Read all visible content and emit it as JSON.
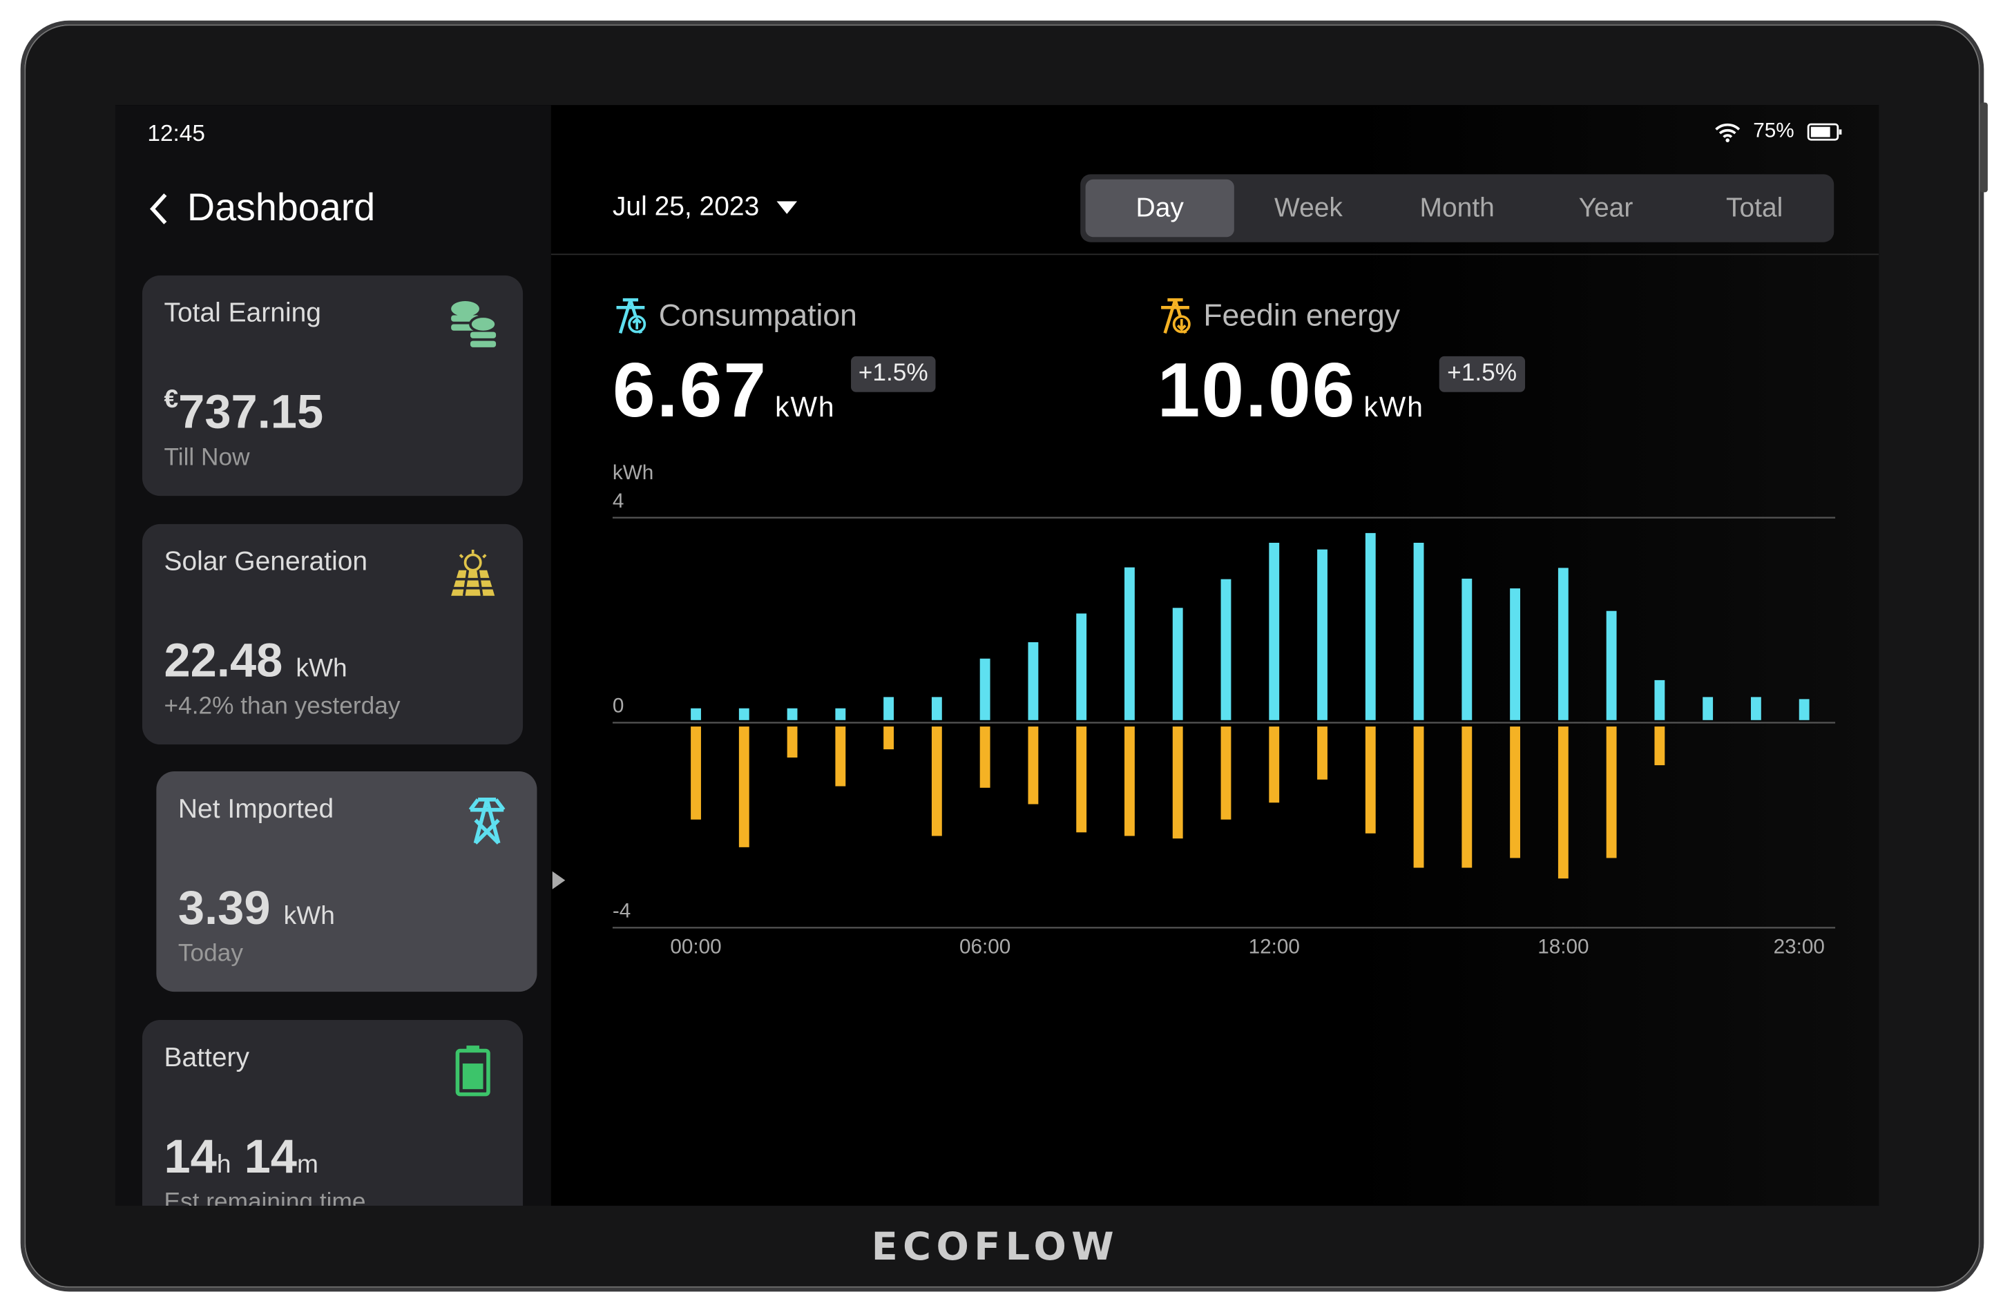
{
  "status": {
    "time": "12:45",
    "battery": "75%"
  },
  "sidebar": {
    "title": "Dashboard",
    "cards": [
      {
        "title": "Total Earning",
        "currency": "€",
        "value": "737.15",
        "unit": "",
        "sub": "Till Now",
        "icon": "coins-icon"
      },
      {
        "title": "Solar Generation",
        "value": "22.48",
        "unit": "kWh",
        "sub": "+4.2% than yesterday",
        "icon": "solar-panel-icon"
      },
      {
        "title": "Net Imported",
        "value": "3.39",
        "unit": "kWh",
        "sub": "Today",
        "icon": "power-tower-icon"
      },
      {
        "title": "Battery",
        "value_h": "14",
        "unit_h": "h",
        "value_m": "14",
        "unit_m": "m",
        "sub": "Est remaining time",
        "icon": "battery-icon"
      }
    ]
  },
  "header": {
    "date": "Jul 25, 2023",
    "tabs": [
      "Day",
      "Week",
      "Month",
      "Year",
      "Total"
    ],
    "active_tab": "Day"
  },
  "metrics": [
    {
      "label": "Consumpation",
      "value": "6.67",
      "unit": "kWh",
      "change": "+1.5%",
      "color": "#5ee0f0"
    },
    {
      "label": "Feedin energy",
      "value": "10.06",
      "unit": "kWh",
      "change": "+1.5%",
      "color": "#f5b224"
    }
  ],
  "brand": "ECOFLOW",
  "chart_data": {
    "type": "bar",
    "ylabel": "kWh",
    "ylim": [
      -4,
      4
    ],
    "yticks": [
      "4",
      "0",
      "-4"
    ],
    "x": [
      "00:00",
      "01:00",
      "02:00",
      "03:00",
      "04:00",
      "05:00",
      "06:00",
      "07:00",
      "08:00",
      "09:00",
      "10:00",
      "11:00",
      "12:00",
      "13:00",
      "14:00",
      "15:00",
      "16:00",
      "17:00",
      "18:00",
      "19:00",
      "20:00",
      "21:00",
      "22:00",
      "23:00"
    ],
    "xtick_labels": [
      "00:00",
      "06:00",
      "12:00",
      "18:00",
      "23:00"
    ],
    "series": [
      {
        "name": "Consumpation",
        "color": "#5ee0f0",
        "values": [
          0.28,
          0.28,
          0.28,
          0.28,
          0.5,
          0.5,
          1.25,
          1.57,
          2.13,
          3.03,
          2.24,
          2.8,
          3.51,
          3.38,
          3.7,
          3.51,
          2.81,
          2.62,
          3.02,
          2.18,
          0.83,
          0.5,
          0.5,
          0.46
        ]
      },
      {
        "name": "Feedin energy",
        "color": "#f5b224",
        "values": [
          -1.89,
          -2.43,
          -0.68,
          -1.24,
          -0.52,
          -2.21,
          -1.27,
          -1.59,
          -2.14,
          -2.21,
          -2.26,
          -1.89,
          -1.56,
          -1.11,
          -2.16,
          -2.83,
          -2.83,
          -2.64,
          -3.04,
          -2.64,
          -0.83,
          0,
          0,
          0
        ]
      }
    ]
  }
}
